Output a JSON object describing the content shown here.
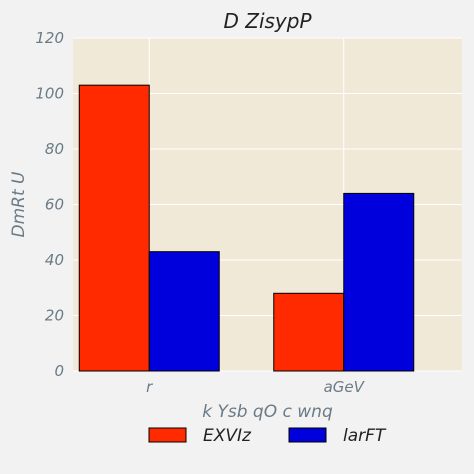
{
  "chart_data": {
    "type": "bar",
    "title": "D ZisypP",
    "xlabel": "k Ysb qO c wnq",
    "ylabel": "DmRt U",
    "categories": [
      "r",
      "aGeV"
    ],
    "series": [
      {
        "name": "EXVIz",
        "values": [
          103,
          28
        ],
        "color": "#ff2a00"
      },
      {
        "name": "larFT",
        "values": [
          43,
          64
        ],
        "color": "#0000dd"
      }
    ],
    "ylim": [
      0,
      120
    ],
    "yticks": [
      0,
      20,
      40,
      60,
      80,
      100,
      120
    ],
    "grid": true,
    "legend_position": "bottom-center"
  },
  "colors": {
    "page_background": "#f2f2f2",
    "plot_background": "#f0e9d8",
    "grid": "#ffffff"
  }
}
